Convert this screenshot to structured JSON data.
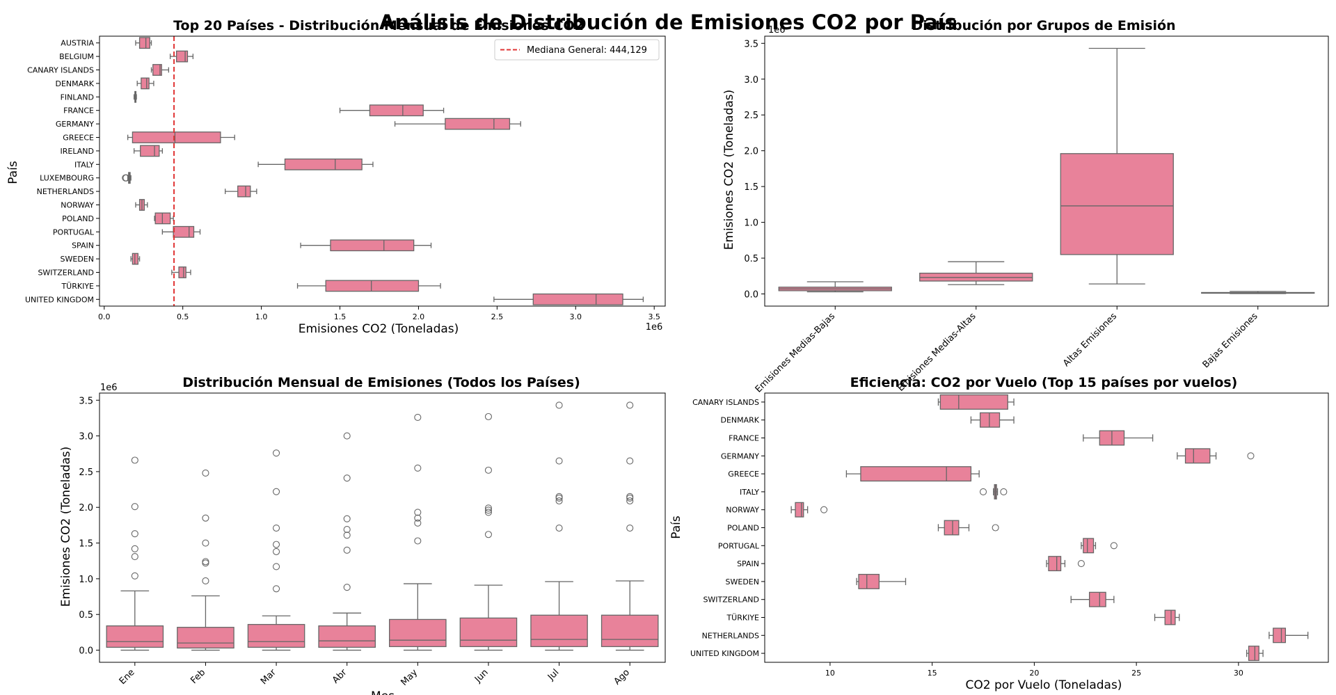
{
  "figure": {
    "suptitle": "Análisis de Distribución de Emisiones CO2 por País"
  },
  "colors": {
    "box_fill": "#e8829a",
    "box_edge": "#666666",
    "median_line": "#e03434"
  },
  "chart_data": [
    {
      "id": "top20",
      "type": "boxplot",
      "orientation": "horizontal",
      "title": "Top 20 Países - Distribución Mensual de Emisiones CO2",
      "xlabel": "Emisiones CO2 (Toneladas)",
      "ylabel": "País",
      "x_multiplier": "1e6",
      "xlim": [
        -0.03,
        3.57
      ],
      "xticks": [
        0.0,
        0.5,
        1.0,
        1.5,
        2.0,
        2.5,
        3.0,
        3.5
      ],
      "xtick_labels": [
        "0.0",
        "0.5",
        "1.0",
        "1.5",
        "2.0",
        "2.5",
        "3.0",
        "3.5"
      ],
      "reference_line": {
        "value": 0.444129,
        "label": "Mediana General: 444,129"
      },
      "legend_position": "top-right",
      "categories": [
        "AUSTRIA",
        "BELGIUM",
        "CANARY ISLANDS",
        "DENMARK",
        "FINLAND",
        "FRANCE",
        "GERMANY",
        "GREECE",
        "IRELAND",
        "ITALY",
        "LUXEMBOURG",
        "NETHERLANDS",
        "NORWAY",
        "POLAND",
        "PORTUGAL",
        "SPAIN",
        "SWEDEN",
        "SWITZERLAND",
        "TÜRKIYE",
        "UNITED KINGDOM"
      ],
      "boxes": [
        {
          "whislo": 0.2,
          "q1": 0.225,
          "med": 0.265,
          "q3": 0.29,
          "whishi": 0.3,
          "fliers": []
        },
        {
          "whislo": 0.42,
          "q1": 0.46,
          "med": 0.515,
          "q3": 0.53,
          "whishi": 0.565,
          "fliers": []
        },
        {
          "whislo": 0.3,
          "q1": 0.31,
          "med": 0.355,
          "q3": 0.365,
          "whishi": 0.41,
          "fliers": []
        },
        {
          "whislo": 0.21,
          "q1": 0.235,
          "med": 0.27,
          "q3": 0.285,
          "whishi": 0.315,
          "fliers": []
        },
        {
          "whislo": 0.19,
          "q1": 0.195,
          "med": 0.198,
          "q3": 0.202,
          "whishi": 0.205,
          "fliers": []
        },
        {
          "whislo": 1.5,
          "q1": 1.69,
          "med": 1.9,
          "q3": 2.03,
          "whishi": 2.16,
          "fliers": []
        },
        {
          "whislo": 1.85,
          "q1": 2.17,
          "med": 2.48,
          "q3": 2.58,
          "whishi": 2.65,
          "fliers": []
        },
        {
          "whislo": 0.15,
          "q1": 0.18,
          "med": 0.45,
          "q3": 0.74,
          "whishi": 0.83,
          "fliers": []
        },
        {
          "whislo": 0.19,
          "q1": 0.23,
          "med": 0.32,
          "q3": 0.35,
          "whishi": 0.37,
          "fliers": []
        },
        {
          "whislo": 0.98,
          "q1": 1.15,
          "med": 1.47,
          "q3": 1.64,
          "whishi": 1.71,
          "fliers": []
        },
        {
          "whislo": 0.15,
          "q1": 0.155,
          "med": 0.16,
          "q3": 0.165,
          "whishi": 0.17,
          "fliers": [
            0.135,
            0.14
          ]
        },
        {
          "whislo": 0.77,
          "q1": 0.85,
          "med": 0.9,
          "q3": 0.93,
          "whishi": 0.97,
          "fliers": []
        },
        {
          "whislo": 0.2,
          "q1": 0.225,
          "med": 0.24,
          "q3": 0.255,
          "whishi": 0.275,
          "fliers": []
        },
        {
          "whislo": 0.32,
          "q1": 0.325,
          "med": 0.37,
          "q3": 0.42,
          "whishi": 0.44,
          "fliers": []
        },
        {
          "whislo": 0.37,
          "q1": 0.44,
          "med": 0.54,
          "q3": 0.57,
          "whishi": 0.61,
          "fliers": []
        },
        {
          "whislo": 1.25,
          "q1": 1.44,
          "med": 1.78,
          "q3": 1.97,
          "whishi": 2.08,
          "fliers": []
        },
        {
          "whislo": 0.17,
          "q1": 0.18,
          "med": 0.195,
          "q3": 0.215,
          "whishi": 0.225,
          "fliers": []
        },
        {
          "whislo": 0.43,
          "q1": 0.475,
          "med": 0.505,
          "q3": 0.52,
          "whishi": 0.55,
          "fliers": []
        },
        {
          "whislo": 1.23,
          "q1": 1.41,
          "med": 1.7,
          "q3": 2.0,
          "whishi": 2.14,
          "fliers": []
        },
        {
          "whislo": 2.48,
          "q1": 2.73,
          "med": 3.13,
          "q3": 3.3,
          "whishi": 3.43,
          "fliers": []
        }
      ]
    },
    {
      "id": "grupos",
      "type": "boxplot",
      "orientation": "vertical",
      "title": "Distribución por Grupos de Emisión",
      "xlabel": "",
      "ylabel": "Emisiones CO2 (Toneladas)",
      "y_multiplier": "1e6",
      "ylim": [
        -0.17,
        3.6
      ],
      "yticks": [
        0.0,
        0.5,
        1.0,
        1.5,
        2.0,
        2.5,
        3.0,
        3.5
      ],
      "ytick_labels": [
        "0.0",
        "0.5",
        "1.0",
        "1.5",
        "2.0",
        "2.5",
        "3.0",
        "3.5"
      ],
      "categories": [
        "Emisiones Medias-Bajas",
        "Emisiones Medias-Altas",
        "Altas Emisiones",
        "Bajas Emisiones"
      ],
      "boxes": [
        {
          "whislo": 0.03,
          "q1": 0.045,
          "med": 0.07,
          "q3": 0.095,
          "whishi": 0.17,
          "fliers": []
        },
        {
          "whislo": 0.13,
          "q1": 0.18,
          "med": 0.23,
          "q3": 0.29,
          "whishi": 0.45,
          "fliers": []
        },
        {
          "whislo": 0.14,
          "q1": 0.55,
          "med": 1.23,
          "q3": 1.96,
          "whishi": 3.43,
          "fliers": []
        },
        {
          "whislo": 0.005,
          "q1": 0.01,
          "med": 0.015,
          "q3": 0.02,
          "whishi": 0.035,
          "fliers": []
        }
      ]
    },
    {
      "id": "mensual",
      "type": "boxplot",
      "orientation": "vertical",
      "title": "Distribución Mensual de Emisiones (Todos los Países)",
      "xlabel": "Mes",
      "ylabel": "Emisiones CO2 (Toneladas)",
      "y_multiplier": "1e6",
      "ylim": [
        -0.17,
        3.6
      ],
      "yticks": [
        0.0,
        0.5,
        1.0,
        1.5,
        2.0,
        2.5,
        3.0,
        3.5
      ],
      "ytick_labels": [
        "0.0",
        "0.5",
        "1.0",
        "1.5",
        "2.0",
        "2.5",
        "3.0",
        "3.5"
      ],
      "categories": [
        "Ene",
        "Feb",
        "Mar",
        "Abr",
        "May",
        "Jun",
        "Jul",
        "Ago"
      ],
      "boxes": [
        {
          "whislo": 0.0,
          "q1": 0.04,
          "med": 0.12,
          "q3": 0.34,
          "whishi": 0.83,
          "fliers": [
            1.04,
            1.31,
            1.42,
            1.63,
            2.01,
            2.66
          ]
        },
        {
          "whislo": 0.0,
          "q1": 0.03,
          "med": 0.1,
          "q3": 0.32,
          "whishi": 0.76,
          "fliers": [
            0.97,
            1.22,
            1.24,
            1.5,
            1.85,
            2.48
          ]
        },
        {
          "whislo": 0.0,
          "q1": 0.04,
          "med": 0.12,
          "q3": 0.36,
          "whishi": 0.48,
          "fliers": [
            0.86,
            1.17,
            1.38,
            1.48,
            1.71,
            2.22,
            2.76
          ]
        },
        {
          "whislo": 0.0,
          "q1": 0.04,
          "med": 0.13,
          "q3": 0.34,
          "whishi": 0.52,
          "fliers": [
            0.88,
            1.4,
            1.61,
            1.69,
            1.84,
            2.41,
            3.0
          ]
        },
        {
          "whislo": 0.0,
          "q1": 0.05,
          "med": 0.14,
          "q3": 0.43,
          "whishi": 0.93,
          "fliers": [
            1.53,
            1.78,
            1.85,
            1.93,
            2.55,
            3.26
          ]
        },
        {
          "whislo": 0.0,
          "q1": 0.05,
          "med": 0.14,
          "q3": 0.45,
          "whishi": 0.91,
          "fliers": [
            1.62,
            1.93,
            1.96,
            1.99,
            2.52,
            3.27
          ]
        },
        {
          "whislo": 0.0,
          "q1": 0.05,
          "med": 0.15,
          "q3": 0.49,
          "whishi": 0.96,
          "fliers": [
            1.71,
            2.09,
            2.13,
            2.15,
            2.65,
            3.43
          ]
        },
        {
          "whislo": 0.0,
          "q1": 0.05,
          "med": 0.15,
          "q3": 0.49,
          "whishi": 0.97,
          "fliers": [
            1.71,
            2.09,
            2.13,
            2.15,
            2.65,
            3.43
          ]
        }
      ]
    },
    {
      "id": "eficiencia",
      "type": "boxplot",
      "orientation": "horizontal",
      "title": "Eficiencia: CO2 por Vuelo (Top 15 países por vuelos)",
      "xlabel": "CO2 por Vuelo (Toneladas)",
      "ylabel": "País",
      "xlim": [
        6.8,
        34.4
      ],
      "xticks": [
        10,
        15,
        20,
        25,
        30
      ],
      "xtick_labels": [
        "10",
        "15",
        "20",
        "25",
        "30"
      ],
      "categories": [
        "CANARY ISLANDS",
        "DENMARK",
        "FRANCE",
        "GERMANY",
        "GREECE",
        "ITALY",
        "NORWAY",
        "POLAND",
        "PORTUGAL",
        "SPAIN",
        "SWEDEN",
        "SWITZERLAND",
        "TÜRKIYE",
        "NETHERLANDS",
        "UNITED KINGDOM"
      ],
      "boxes": [
        {
          "whislo": 15.3,
          "q1": 15.4,
          "med": 16.3,
          "q3": 18.7,
          "whishi": 19.0,
          "fliers": []
        },
        {
          "whislo": 16.9,
          "q1": 17.35,
          "med": 17.8,
          "q3": 18.3,
          "whishi": 19.0,
          "fliers": []
        },
        {
          "whislo": 22.4,
          "q1": 23.2,
          "med": 23.8,
          "q3": 24.4,
          "whishi": 25.8,
          "fliers": []
        },
        {
          "whislo": 27.0,
          "q1": 27.4,
          "med": 27.8,
          "q3": 28.6,
          "whishi": 28.9,
          "fliers": [
            30.6
          ]
        },
        {
          "whislo": 10.8,
          "q1": 11.5,
          "med": 15.7,
          "q3": 16.9,
          "whishi": 17.3,
          "fliers": []
        },
        {
          "whislo": 18.0,
          "q1": 18.05,
          "med": 18.1,
          "q3": 18.15,
          "whishi": 18.2,
          "fliers": [
            17.5,
            18.5
          ]
        },
        {
          "whislo": 8.1,
          "q1": 8.3,
          "med": 8.6,
          "q3": 8.7,
          "whishi": 8.9,
          "fliers": [
            9.7
          ]
        },
        {
          "whislo": 15.3,
          "q1": 15.6,
          "med": 16.0,
          "q3": 16.3,
          "whishi": 16.8,
          "fliers": [
            18.1
          ]
        },
        {
          "whislo": 22.3,
          "q1": 22.4,
          "med": 22.6,
          "q3": 22.9,
          "whishi": 23.0,
          "fliers": [
            23.9
          ]
        },
        {
          "whislo": 20.6,
          "q1": 20.7,
          "med": 21.1,
          "q3": 21.3,
          "whishi": 21.5,
          "fliers": [
            22.3
          ]
        },
        {
          "whislo": 11.3,
          "q1": 11.4,
          "med": 11.8,
          "q3": 12.4,
          "whishi": 13.7,
          "fliers": []
        },
        {
          "whislo": 21.8,
          "q1": 22.7,
          "med": 23.2,
          "q3": 23.5,
          "whishi": 23.9,
          "fliers": []
        },
        {
          "whislo": 25.9,
          "q1": 26.4,
          "med": 26.7,
          "q3": 26.9,
          "whishi": 27.1,
          "fliers": []
        },
        {
          "whislo": 31.5,
          "q1": 31.7,
          "med": 32.1,
          "q3": 32.3,
          "whishi": 33.4,
          "fliers": []
        },
        {
          "whislo": 30.4,
          "q1": 30.5,
          "med": 30.8,
          "q3": 31.0,
          "whishi": 31.2,
          "fliers": []
        }
      ]
    }
  ]
}
